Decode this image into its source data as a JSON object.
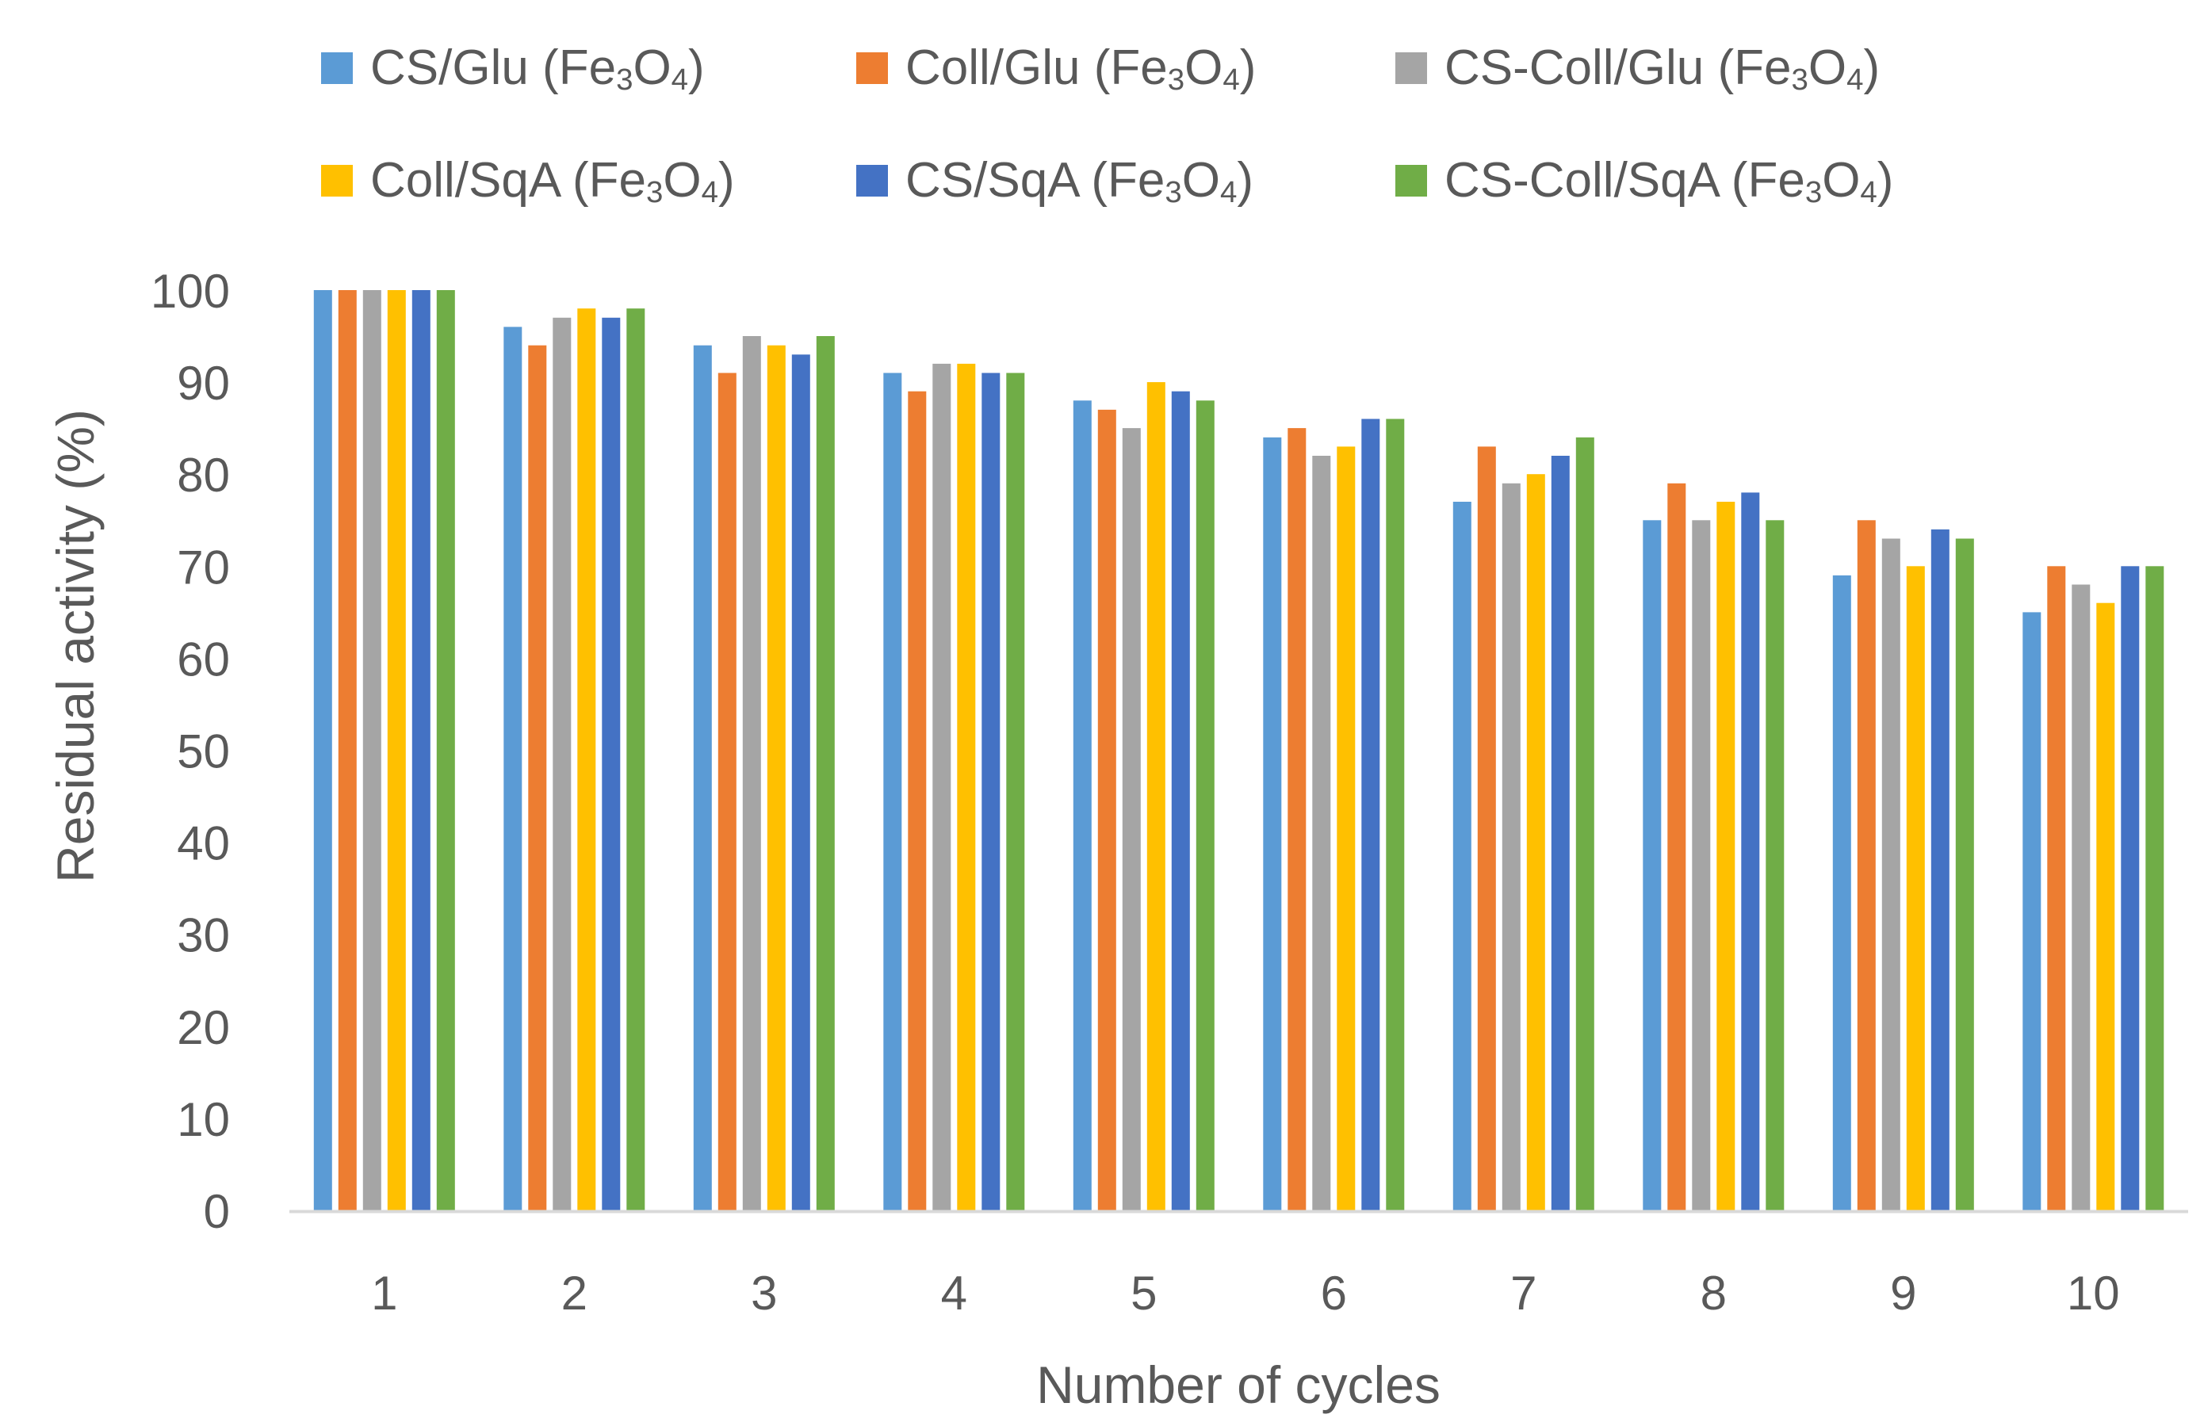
{
  "chart_data": {
    "type": "bar",
    "title": "",
    "xlabel": "Number of cycles",
    "ylabel": "Residual activity (%)",
    "ylim": [
      0,
      100
    ],
    "ytick_step": 10,
    "grid": false,
    "legend_position": "top",
    "categories": [
      "1",
      "2",
      "3",
      "4",
      "5",
      "6",
      "7",
      "8",
      "9",
      "10"
    ],
    "series": [
      {
        "name": "CS/Glu (Fe3O4)",
        "color": "#5B9BD5",
        "values": [
          100,
          96,
          94,
          91,
          88,
          84,
          77,
          75,
          69,
          65
        ]
      },
      {
        "name": "Coll/Glu (Fe3O4)",
        "color": "#ED7D31",
        "values": [
          100,
          94,
          91,
          89,
          87,
          85,
          83,
          79,
          75,
          70
        ]
      },
      {
        "name": "CS-Coll/Glu (Fe3O4)",
        "color": "#A5A5A5",
        "values": [
          100,
          97,
          95,
          92,
          85,
          82,
          79,
          75,
          73,
          68
        ]
      },
      {
        "name": "Coll/SqA (Fe3O4)",
        "color": "#FFC000",
        "values": [
          100,
          98,
          94,
          92,
          90,
          83,
          80,
          77,
          70,
          66
        ]
      },
      {
        "name": "CS/SqA (Fe3O4)",
        "color": "#4472C4",
        "values": [
          100,
          97,
          93,
          91,
          89,
          86,
          82,
          78,
          74,
          70
        ]
      },
      {
        "name": "CS-Coll/SqA (Fe3O4)",
        "color": "#70AD47",
        "values": [
          100,
          98,
          95,
          91,
          88,
          86,
          84,
          75,
          73,
          70
        ]
      }
    ],
    "axis_color": "#D9D9D9",
    "text_color": "#595959"
  }
}
